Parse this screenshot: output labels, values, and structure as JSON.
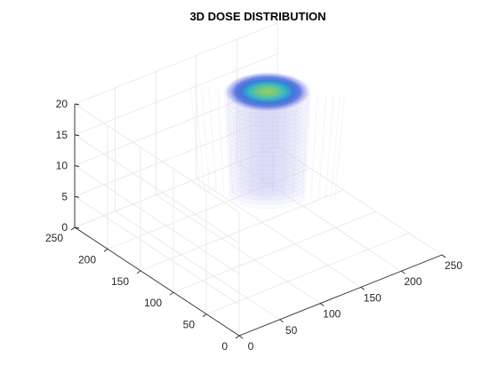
{
  "chart_data": {
    "type": "volume",
    "title": "3D DOSE DISTRIBUTION",
    "xlabel": "",
    "ylabel": "",
    "zlabel": "",
    "xlim": [
      0,
      250
    ],
    "ylim": [
      0,
      250
    ],
    "zlim": [
      0,
      20
    ],
    "x_ticks": [
      0,
      50,
      100,
      150,
      200,
      250
    ],
    "y_ticks": [
      0,
      50,
      100,
      150,
      200,
      250
    ],
    "z_ticks": [
      0,
      5,
      10,
      15,
      20
    ],
    "x_tick_labels": [
      "0",
      "50",
      "100",
      "150",
      "200",
      "250"
    ],
    "y_tick_labels": [
      "0",
      "50",
      "100",
      "150",
      "200",
      "250"
    ],
    "z_tick_labels": [
      "0",
      "5",
      "10",
      "15",
      "20"
    ],
    "grid": true,
    "view": "isometric",
    "volume": {
      "center_x": 185,
      "center_y": 185,
      "radius_top": 55,
      "radius_bottom": 48,
      "z_min": 0,
      "z_max": 17,
      "hot_layer_z": 17,
      "hot_core_radius": 28
    },
    "colors": {
      "background": "#ffffff",
      "grid": "#e6e6e6",
      "axis": "#262626",
      "volume_haze": "#b8b8ee",
      "hot_outer": "#3a5fd8",
      "hot_mid": "#2ab7d6",
      "hot_core": "#7dcc6a"
    }
  }
}
